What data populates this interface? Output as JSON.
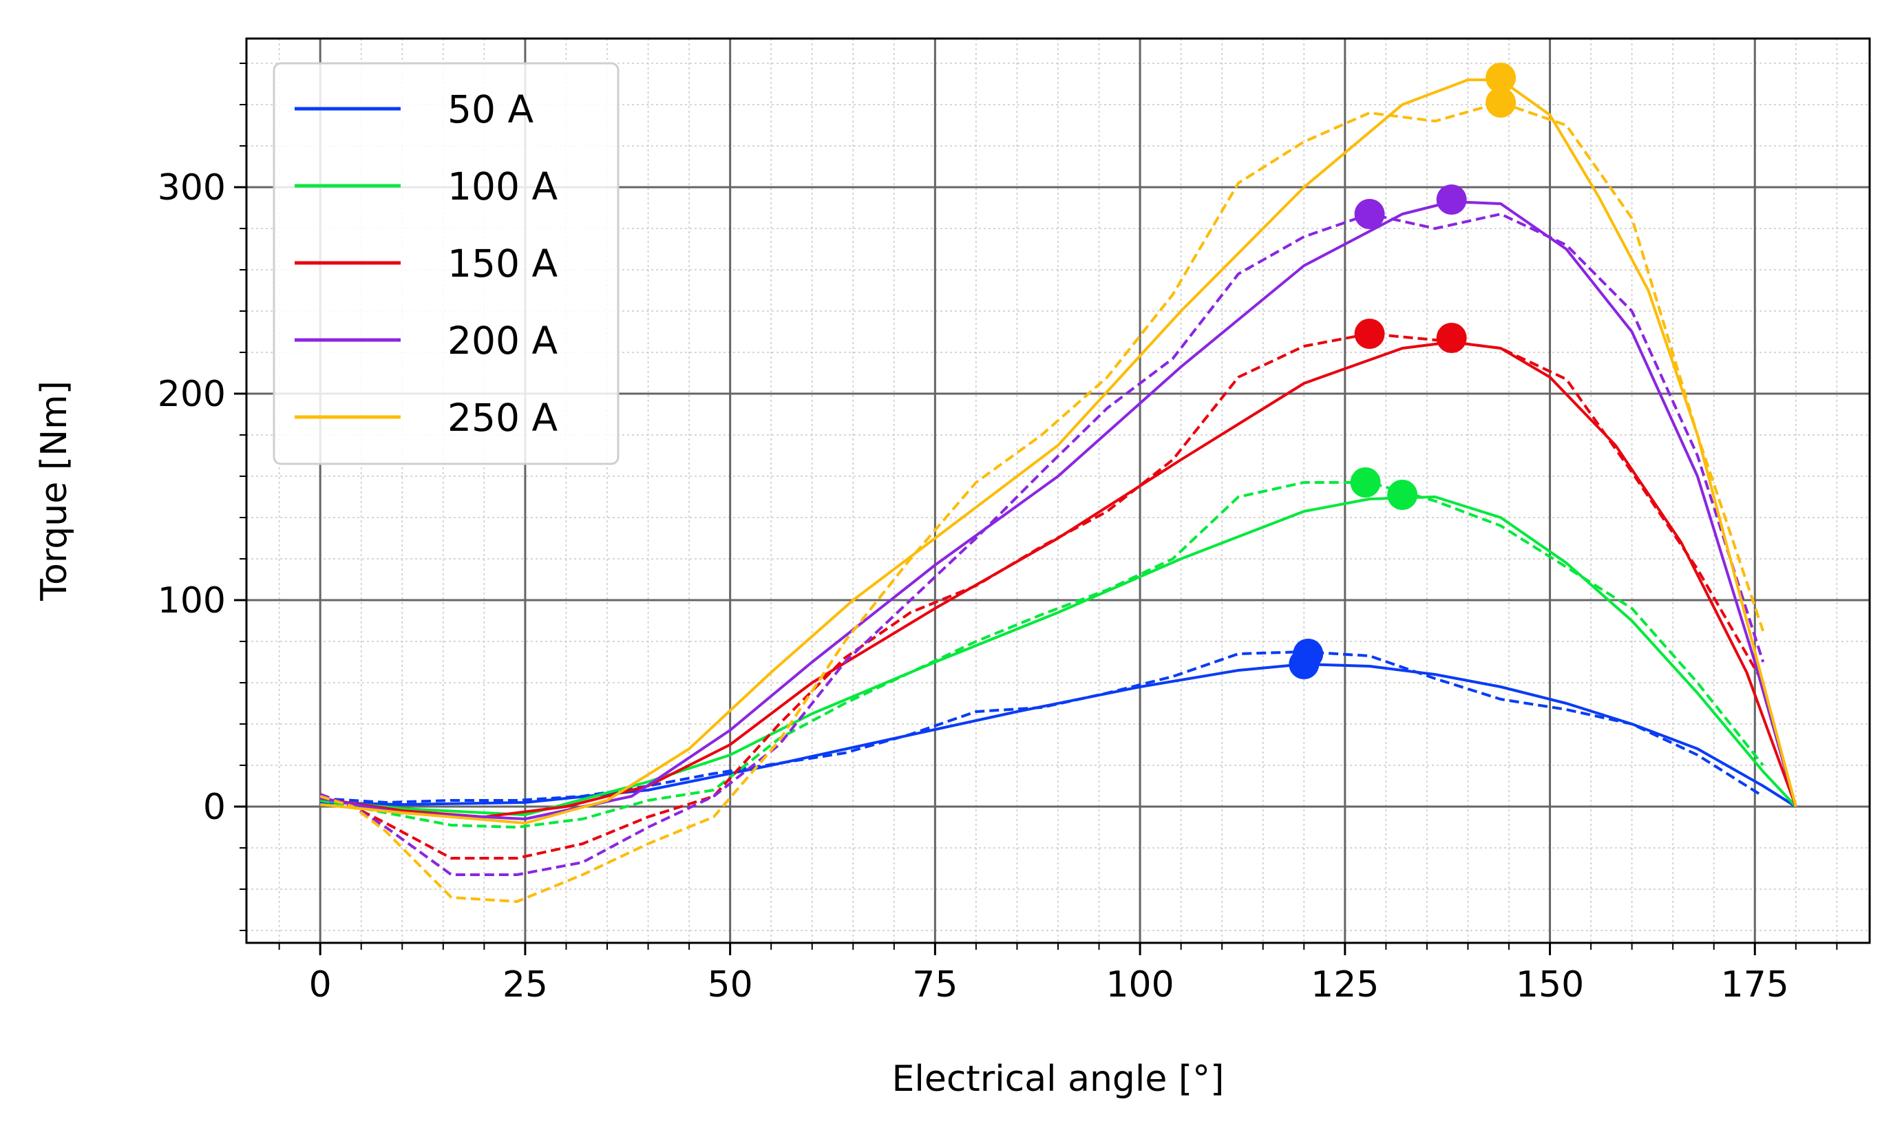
{
  "chart_data": {
    "type": "line",
    "title": "",
    "xlabel": "Electrical angle [°]",
    "ylabel": "Torque [Nm]",
    "xlim": [
      -9,
      189
    ],
    "ylim": [
      -66,
      372
    ],
    "x_ticks": [
      0,
      25,
      50,
      75,
      100,
      125,
      150,
      175
    ],
    "y_ticks": [
      0,
      100,
      200,
      300
    ],
    "grid": "major and minor",
    "legend_position": "upper-left",
    "line_styles": {
      "solid": "model",
      "dashed": "measured"
    },
    "series": [
      {
        "name": "50 A",
        "color": "#0a3cf5",
        "solid": {
          "x": [
            0,
            10,
            25,
            40,
            55,
            70,
            85,
            100,
            112,
            120,
            128,
            136,
            144,
            152,
            160,
            168,
            176,
            180
          ],
          "y": [
            2,
            1,
            2,
            8,
            20,
            33,
            46,
            58,
            66,
            69,
            68,
            64,
            58,
            50,
            40,
            28,
            10,
            0
          ]
        },
        "dashed": {
          "x": [
            0,
            4,
            8,
            16,
            24,
            32,
            40,
            48,
            56,
            64,
            72,
            80,
            88,
            96,
            104,
            112,
            120,
            128,
            136,
            144,
            152,
            160,
            168,
            176
          ],
          "y": [
            4,
            3,
            2,
            3,
            3,
            5,
            10,
            16,
            21,
            26,
            35,
            46,
            48,
            55,
            63,
            74,
            75,
            73,
            62,
            52,
            47,
            40,
            25,
            5
          ]
        },
        "markers": [
          {
            "x": 120,
            "y": 69
          },
          {
            "x": 120.5,
            "y": 74
          }
        ]
      },
      {
        "name": "100 A",
        "color": "#06e83d",
        "solid": {
          "x": [
            0,
            10,
            25,
            40,
            50,
            60,
            75,
            90,
            105,
            120,
            128,
            136,
            144,
            152,
            160,
            168,
            176,
            180
          ],
          "y": [
            3,
            -1,
            -4,
            12,
            25,
            45,
            70,
            94,
            120,
            143,
            149,
            150,
            140,
            118,
            90,
            55,
            17,
            0
          ]
        },
        "dashed": {
          "x": [
            0,
            4,
            8,
            16,
            24,
            32,
            40,
            48,
            56,
            64,
            72,
            80,
            88,
            96,
            104,
            112,
            120,
            128,
            136,
            144,
            152,
            160,
            168,
            176
          ],
          "y": [
            3,
            0,
            -3,
            -9,
            -10,
            -6,
            3,
            8,
            33,
            50,
            65,
            80,
            93,
            105,
            120,
            150,
            157,
            157,
            148,
            136,
            116,
            96,
            60,
            20
          ]
        },
        "markers": [
          {
            "x": 127.5,
            "y": 157
          },
          {
            "x": 132,
            "y": 151
          }
        ]
      },
      {
        "name": "150 A",
        "color": "#e8050f",
        "solid": {
          "x": [
            0,
            10,
            20,
            30,
            40,
            50,
            60,
            75,
            90,
            105,
            120,
            132,
            138,
            144,
            150,
            158,
            166,
            174,
            180
          ],
          "y": [
            4,
            -2,
            -5,
            0,
            10,
            30,
            60,
            96,
            130,
            168,
            205,
            222,
            225,
            222,
            208,
            175,
            128,
            65,
            0
          ]
        },
        "dashed": {
          "x": [
            0,
            4,
            8,
            16,
            24,
            32,
            40,
            48,
            56,
            64,
            72,
            80,
            88,
            96,
            104,
            112,
            120,
            128,
            136,
            144,
            152,
            160,
            168,
            176
          ],
          "y": [
            5,
            0,
            -8,
            -25,
            -25,
            -18,
            -5,
            5,
            40,
            72,
            94,
            107,
            126,
            143,
            168,
            208,
            223,
            229,
            226,
            222,
            207,
            162,
            115,
            60
          ]
        },
        "markers": [
          {
            "x": 128,
            "y": 229
          },
          {
            "x": 138,
            "y": 227
          }
        ]
      },
      {
        "name": "200 A",
        "color": "#8a26e0",
        "solid": {
          "x": [
            0,
            10,
            25,
            38,
            50,
            60,
            75,
            90,
            105,
            120,
            132,
            138,
            144,
            152,
            160,
            168,
            175,
            180
          ],
          "y": [
            4,
            -3,
            -6,
            5,
            37,
            70,
            117,
            160,
            213,
            262,
            287,
            293,
            292,
            270,
            230,
            160,
            70,
            0
          ]
        },
        "dashed": {
          "x": [
            0,
            4,
            8,
            16,
            24,
            32,
            40,
            48,
            56,
            64,
            72,
            80,
            88,
            96,
            104,
            112,
            120,
            128,
            136,
            144,
            152,
            160,
            168,
            176
          ],
          "y": [
            6,
            0,
            -10,
            -33,
            -33,
            -27,
            -10,
            5,
            30,
            70,
            100,
            130,
            162,
            193,
            217,
            258,
            276,
            287,
            280,
            287,
            272,
            240,
            170,
            70
          ]
        },
        "markers": [
          {
            "x": 128,
            "y": 287
          },
          {
            "x": 138,
            "y": 294
          }
        ]
      },
      {
        "name": "250 A",
        "color": "#fcbc0a",
        "solid": {
          "x": [
            0,
            10,
            25,
            35,
            45,
            55,
            65,
            75,
            90,
            105,
            120,
            132,
            140,
            144,
            150,
            156,
            162,
            168,
            174,
            180
          ],
          "y": [
            1,
            -3,
            -8,
            3,
            28,
            65,
            100,
            130,
            175,
            240,
            300,
            340,
            352,
            352,
            335,
            295,
            250,
            180,
            90,
            0
          ]
        },
        "dashed": {
          "x": [
            0,
            4,
            8,
            16,
            24,
            32,
            40,
            48,
            56,
            64,
            72,
            80,
            88,
            96,
            104,
            112,
            120,
            128,
            136,
            144,
            152,
            160,
            168,
            176
          ],
          "y": [
            5,
            0,
            -12,
            -44,
            -46,
            -33,
            -18,
            -5,
            32,
            80,
            120,
            157,
            180,
            208,
            248,
            302,
            322,
            336,
            332,
            341,
            330,
            285,
            180,
            85
          ]
        },
        "markers": [
          {
            "x": 144,
            "y": 341
          },
          {
            "x": 144,
            "y": 353
          }
        ]
      }
    ]
  }
}
